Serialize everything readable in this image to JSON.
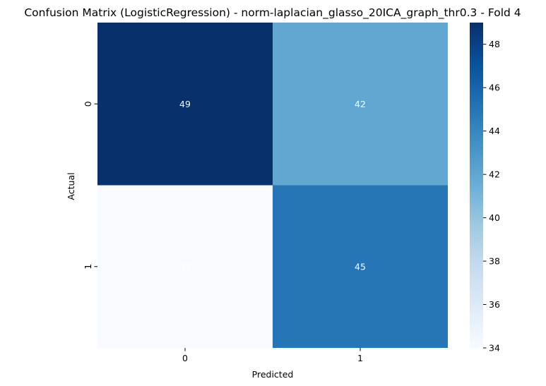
{
  "chart_data": {
    "type": "heatmap",
    "title": "Confusion Matrix (LogisticRegression) - norm-laplacian_glasso_20ICA_graph_thr0.3 - Fold 4",
    "xlabel": "Predicted",
    "ylabel": "Actual",
    "x_categories": [
      "0",
      "1"
    ],
    "y_categories": [
      "0",
      "1"
    ],
    "values": [
      [
        49,
        42
      ],
      [
        34,
        45
      ]
    ],
    "colormap": "Blues",
    "vmin": 34,
    "vmax": 49,
    "colorbar_ticks": [
      "34",
      "36",
      "38",
      "40",
      "42",
      "44",
      "46",
      "48"
    ],
    "annotation_colors": {
      "on_dark": "#ffffff",
      "on_light": "#262626"
    }
  }
}
